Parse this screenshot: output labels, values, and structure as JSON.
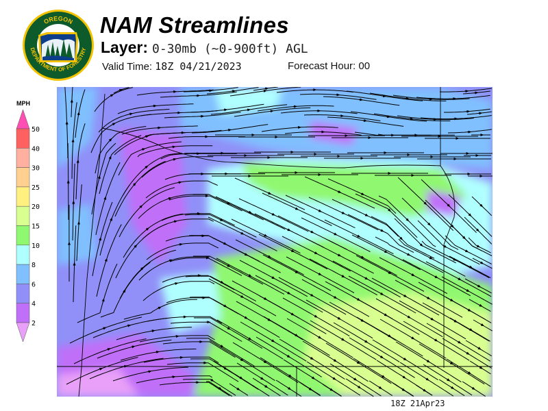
{
  "header": {
    "title": "NAM Streamlines",
    "layer_label": "Layer:",
    "layer_value": "0-30mb (~0-900ft) AGL",
    "valid_time_label": "Valid Time:",
    "valid_time_value": "18Z 04/21/2023",
    "forecast_hour_label": "Forecast Hour:",
    "forecast_hour_value": "00"
  },
  "logo": {
    "top_text": "OREGON",
    "bottom_text": "DEPARTMENT OF FORESTRY",
    "colors": {
      "ring": "#0d5a2a",
      "text": "#f2c200"
    }
  },
  "legend": {
    "unit": "MPH",
    "ticks": [
      "50",
      "40",
      "30",
      "25",
      "20",
      "15",
      "10",
      "8",
      "6",
      "4",
      "2"
    ],
    "bins": [
      {
        "range": ">50",
        "color": "#ff4fb4"
      },
      {
        "range": "40-50",
        "color": "#ff6060"
      },
      {
        "range": "30-40",
        "color": "#ffb0a0"
      },
      {
        "range": "25-30",
        "color": "#ffd090"
      },
      {
        "range": "20-25",
        "color": "#fff080"
      },
      {
        "range": "15-20",
        "color": "#d8ff90"
      },
      {
        "range": "10-15",
        "color": "#90f870"
      },
      {
        "range": "8-10",
        "color": "#b0ffff"
      },
      {
        "range": "6-8",
        "color": "#80c0ff"
      },
      {
        "range": "4-6",
        "color": "#9090f8"
      },
      {
        "range": "2-4",
        "color": "#c070f8"
      },
      {
        "range": "<2",
        "color": "#e8a0f8"
      }
    ]
  },
  "map": {
    "region": "Oregon",
    "field": "wind speed with streamlines"
  },
  "footer": {
    "timestamp": "18Z 21Apr23"
  }
}
